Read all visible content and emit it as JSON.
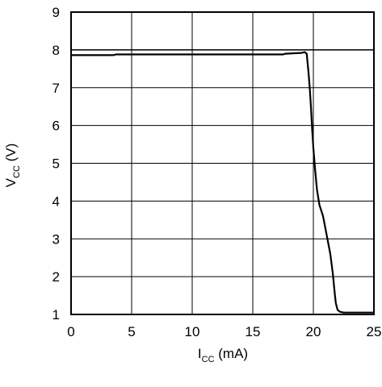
{
  "chart_data": {
    "type": "line",
    "xlabel": {
      "main": "I",
      "sub": "CC",
      "unit": " (mA)"
    },
    "ylabel": {
      "main": "V",
      "sub": "CC",
      "unit": " (V)"
    },
    "xlim": [
      0,
      25
    ],
    "ylim": [
      1,
      9
    ],
    "x_ticks": [
      0,
      5,
      10,
      15,
      20,
      25
    ],
    "y_ticks": [
      1,
      2,
      3,
      4,
      5,
      6,
      7,
      8,
      9
    ],
    "grid": true,
    "reference_line": {
      "y": 8.0
    },
    "series": [
      {
        "x": [
          0,
          3.5,
          3.7,
          10,
          17.5,
          17.7,
          19.0,
          19.3,
          19.45,
          19.6,
          19.7,
          19.8,
          19.9,
          20.0,
          20.15,
          20.3,
          20.5,
          20.8,
          21.1,
          21.4,
          21.6,
          21.75,
          21.85,
          22.0,
          22.2,
          22.5,
          23.0,
          25.0
        ],
        "y": [
          7.86,
          7.86,
          7.88,
          7.88,
          7.88,
          7.9,
          7.92,
          7.94,
          7.9,
          7.4,
          7.0,
          6.5,
          5.9,
          5.4,
          4.8,
          4.3,
          3.9,
          3.6,
          3.1,
          2.6,
          2.1,
          1.6,
          1.3,
          1.12,
          1.07,
          1.05,
          1.05,
          1.05
        ]
      }
    ]
  }
}
